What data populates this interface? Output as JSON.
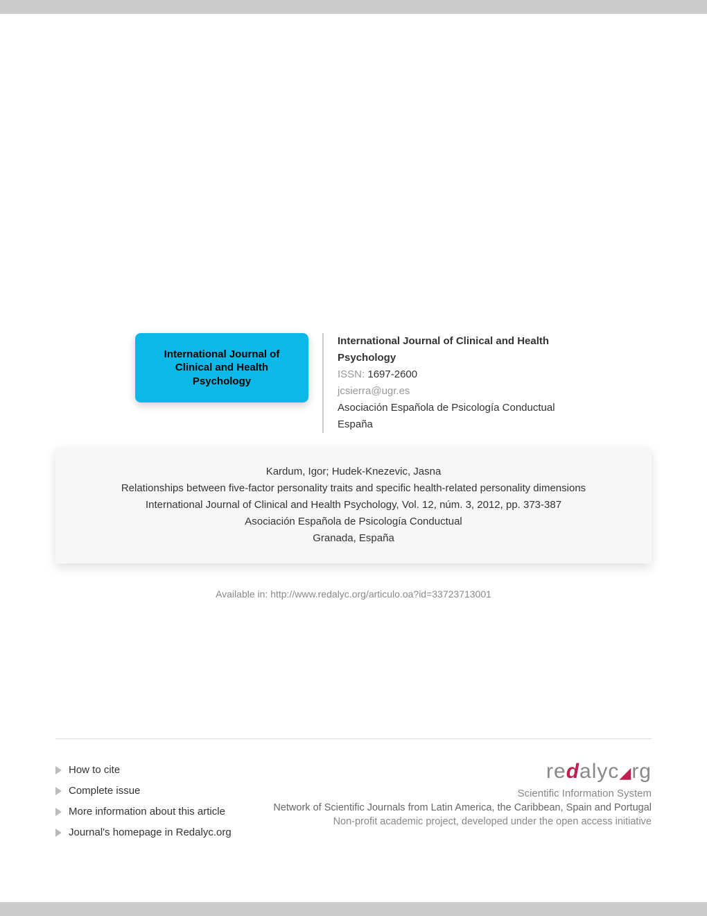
{
  "journal": {
    "cover_text": "International Journal of Clinical and Health Psychology",
    "title": "International Journal of Clinical and Health Psychology",
    "issn_label": "ISSN:",
    "issn_value": "1697-2600",
    "email": "jcsierra@ugr.es",
    "publisher": "Asociación Española de Psicología Conductual",
    "country": "España"
  },
  "citation": {
    "authors": "Kardum, Igor; Hudek-Knezevic, Jasna",
    "title": "Relationships between five-factor personality traits and specific health-related personality dimensions",
    "reference": "International Journal of Clinical and Health Psychology, Vol. 12, núm. 3, 2012, pp. 373-387",
    "publisher": "Asociación Española de Psicología Conductual",
    "location": "Granada, España"
  },
  "available": {
    "label": "Available in:",
    "url": "http://www.redalyc.org/articulo.oa?id=33723713001"
  },
  "footer_links": [
    "How to cite",
    "Complete issue",
    "More information about this article",
    "Journal's homepage in Redalyc.org"
  ],
  "footer_right": {
    "line1": "Scientific Information System",
    "line2": "Network of Scientific Journals from Latin America, the Caribbean, Spain and Portugal",
    "line3": "Non-profit academic project, developed under the open access initiative"
  },
  "colors": {
    "cover_bg": "#0bb8e8",
    "muted": "#999999",
    "bar": "#cccccc",
    "accent": "#c02050"
  }
}
